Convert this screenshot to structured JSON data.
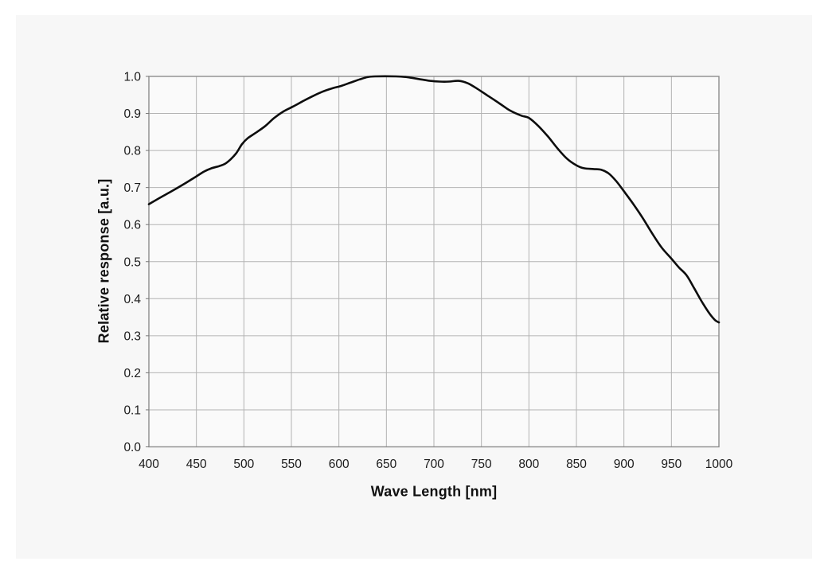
{
  "window": {
    "background": "#ffffff",
    "panel_background": "#f7f7f7"
  },
  "chart_data": {
    "type": "line",
    "title": "",
    "xlabel": "Wave Length [nm]",
    "ylabel": "Relative response [a.u.]",
    "xlim": [
      400,
      1000
    ],
    "ylim": [
      0.0,
      1.0
    ],
    "grid": true,
    "legend": "none",
    "x_ticks": [
      400,
      450,
      500,
      550,
      600,
      650,
      700,
      750,
      800,
      850,
      900,
      950,
      1000
    ],
    "x_tick_labels": [
      "400",
      "450",
      "500",
      "550",
      "600",
      "650",
      "700",
      "750",
      "800",
      "850",
      "900",
      "950",
      "1000"
    ],
    "y_ticks": [
      0.0,
      0.1,
      0.2,
      0.3,
      0.4,
      0.5,
      0.6,
      0.7,
      0.8,
      0.9,
      1.0
    ],
    "y_tick_labels": [
      "0.0",
      "0.1",
      "0.2",
      "0.3",
      "0.4",
      "0.5",
      "0.6",
      "0.7",
      "0.8",
      "0.9",
      "1.0"
    ],
    "series": [
      {
        "name": "relative-response",
        "x": [
          400,
          412,
          424,
          436,
          448,
          458,
          466,
          474,
          480,
          486,
          492,
          498,
          504,
          512,
          522,
          532,
          542,
          552,
          562,
          572,
          582,
          592,
          602,
          612,
          622,
          630,
          638,
          660,
          672,
          684,
          696,
          706,
          716,
          726,
          736,
          746,
          756,
          768,
          780,
          792,
          800,
          810,
          820,
          830,
          840,
          850,
          858,
          868,
          876,
          884,
          892,
          900,
          910,
          920,
          930,
          940,
          950,
          958,
          966,
          974,
          982,
          990,
          996,
          1000
        ],
        "y": [
          0.655,
          0.673,
          0.69,
          0.708,
          0.727,
          0.743,
          0.752,
          0.758,
          0.764,
          0.776,
          0.793,
          0.817,
          0.833,
          0.847,
          0.865,
          0.888,
          0.906,
          0.919,
          0.933,
          0.946,
          0.958,
          0.967,
          0.974,
          0.983,
          0.992,
          0.998,
          1.0,
          1.0,
          0.998,
          0.993,
          0.988,
          0.986,
          0.986,
          0.988,
          0.981,
          0.966,
          0.949,
          0.929,
          0.908,
          0.894,
          0.888,
          0.866,
          0.838,
          0.806,
          0.778,
          0.76,
          0.752,
          0.75,
          0.748,
          0.738,
          0.717,
          0.69,
          0.655,
          0.617,
          0.575,
          0.537,
          0.508,
          0.484,
          0.463,
          0.428,
          0.392,
          0.36,
          0.342,
          0.336
        ]
      }
    ],
    "colors": {
      "line": "#0d0d0d",
      "grid": "#b3b3b3",
      "frame": "#8c8c8c",
      "tick_text": "#1a1a1a",
      "plot_background": "#fafafa"
    }
  }
}
